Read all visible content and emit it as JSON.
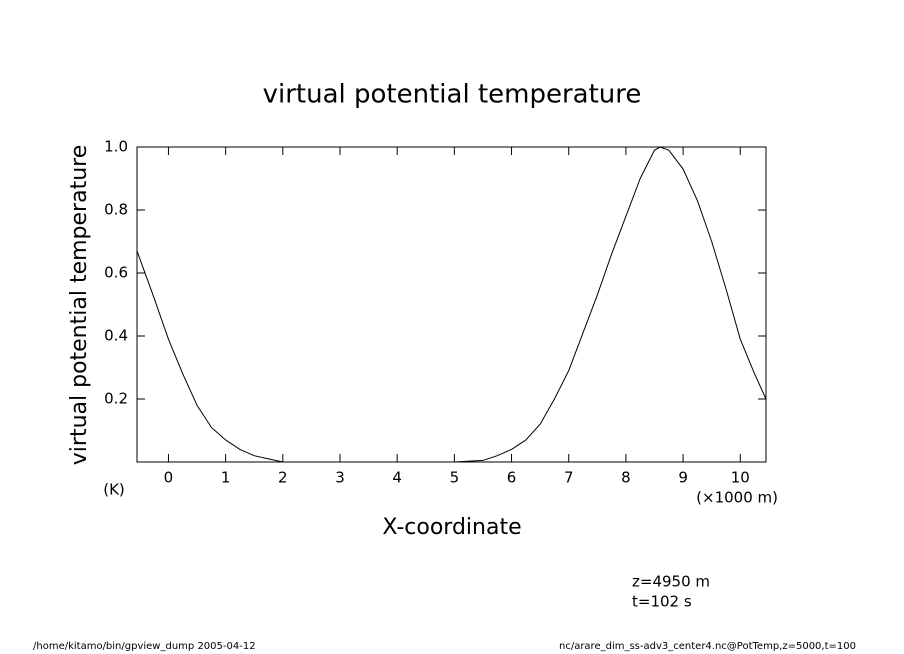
{
  "chart_data": {
    "type": "line",
    "title": "virtual potential temperature",
    "y_label": "virtual potential temperature",
    "y_unit": "(K)",
    "x_label": "X-coordinate",
    "x_unit": "(×1000 m)",
    "annotations": [
      "z=4950  m",
      "t=102  s"
    ],
    "footer_left": "/home/kitamo/bin/gpview_dump  2005-04-12",
    "footer_right": "nc/arare_dim_ss-adv3_center4.nc@PotTemp,z=5000,t=100",
    "xlim": [
      -0.55,
      10.45
    ],
    "xticks": [
      0,
      1,
      2,
      3,
      4,
      5,
      6,
      7,
      8,
      9,
      10
    ],
    "ylim": [
      0,
      1
    ],
    "yticks": [
      0.2,
      0.4,
      0.6,
      0.8,
      {
        "value": 1,
        "label": "1.0"
      }
    ],
    "series": [
      {
        "color": "#000000",
        "x": [
          -0.55,
          -0.25,
          0,
          0.25,
          0.5,
          0.75,
          1,
          1.25,
          1.5,
          1.75,
          2,
          2.5,
          3,
          3.5,
          4,
          4.5,
          5,
          5.5,
          5.75,
          6,
          6.25,
          6.5,
          6.75,
          7,
          7.25,
          7.5,
          7.75,
          8,
          8.25,
          8.5,
          8.6,
          8.75,
          9,
          9.25,
          9.5,
          9.75,
          10,
          10.25,
          10.45
        ],
        "values": [
          0.67,
          0.52,
          0.39,
          0.28,
          0.18,
          0.11,
          0.07,
          0.04,
          0.02,
          0.01,
          0,
          0,
          0,
          0,
          0,
          0,
          0,
          0.005,
          0.02,
          0.04,
          0.07,
          0.12,
          0.2,
          0.29,
          0.41,
          0.53,
          0.66,
          0.78,
          0.9,
          0.99,
          1,
          0.99,
          0.93,
          0.83,
          0.7,
          0.55,
          0.39,
          0.28,
          0.2
        ]
      }
    ]
  }
}
